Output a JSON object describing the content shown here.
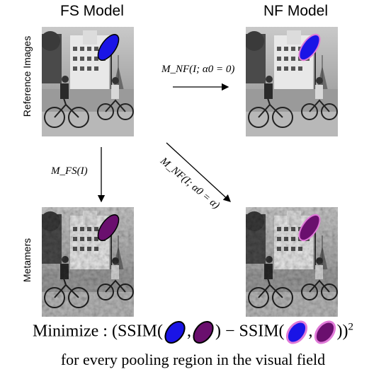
{
  "columns": {
    "left_title": "FS Model",
    "right_title": "NF Model"
  },
  "rows": {
    "top_label": "Reference Images",
    "bottom_label": "Metamers"
  },
  "arrows": {
    "horizontal_label": "M_NF(I; α0 = 0)",
    "vertical_label": "M_FS(I)",
    "diagonal_label": "M_NF(I; α0 = α)"
  },
  "equation": {
    "prefix": "Minimize : (SSIM(",
    "comma1": ",",
    "middle": ") − SSIM(",
    "comma2": ",",
    "suffix": "))",
    "exponent": "2"
  },
  "note": "for every pooling region in the visual field",
  "colors": {
    "ellipse_blue": "#1a14e6",
    "ellipse_purple": "#6a0f6e",
    "ellipse_outline_pink": "#e07ad8"
  }
}
